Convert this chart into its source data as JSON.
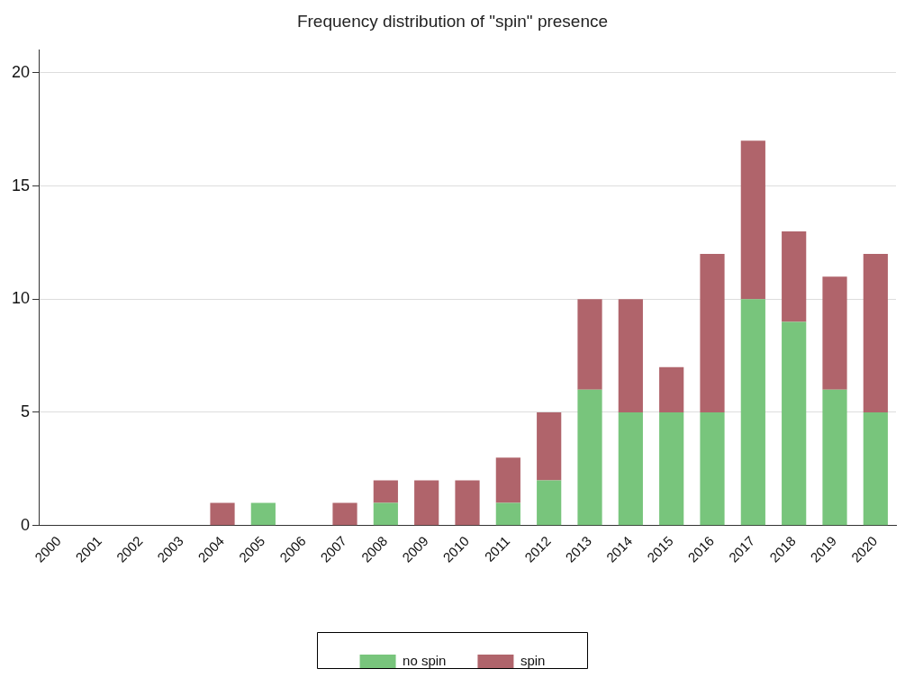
{
  "chart_data": {
    "type": "bar",
    "title": "Frequency distribution of \"spin\" presence",
    "stacked": true,
    "categories": [
      "2000",
      "2001",
      "2002",
      "2003",
      "2004",
      "2005",
      "2006",
      "2007",
      "2008",
      "2009",
      "2010",
      "2011",
      "2012",
      "2013",
      "2014",
      "2015",
      "2016",
      "2017",
      "2018",
      "2019",
      "2020"
    ],
    "series": [
      {
        "name": "no spin",
        "color": "#78c57c",
        "values": [
          0,
          0,
          0,
          0,
          0,
          1,
          0,
          0,
          1,
          0,
          0,
          1,
          2,
          6,
          5,
          5,
          5,
          10,
          9,
          6,
          5
        ]
      },
      {
        "name": "spin",
        "color": "#b0646b",
        "values": [
          0,
          0,
          0,
          0,
          1,
          0,
          0,
          1,
          1,
          2,
          2,
          2,
          3,
          4,
          5,
          2,
          7,
          7,
          4,
          5,
          7
        ]
      }
    ],
    "ylim": [
      0,
      21
    ],
    "yticks": [
      0,
      5,
      10,
      15,
      20
    ],
    "grid": "y",
    "legend": "bottom"
  }
}
